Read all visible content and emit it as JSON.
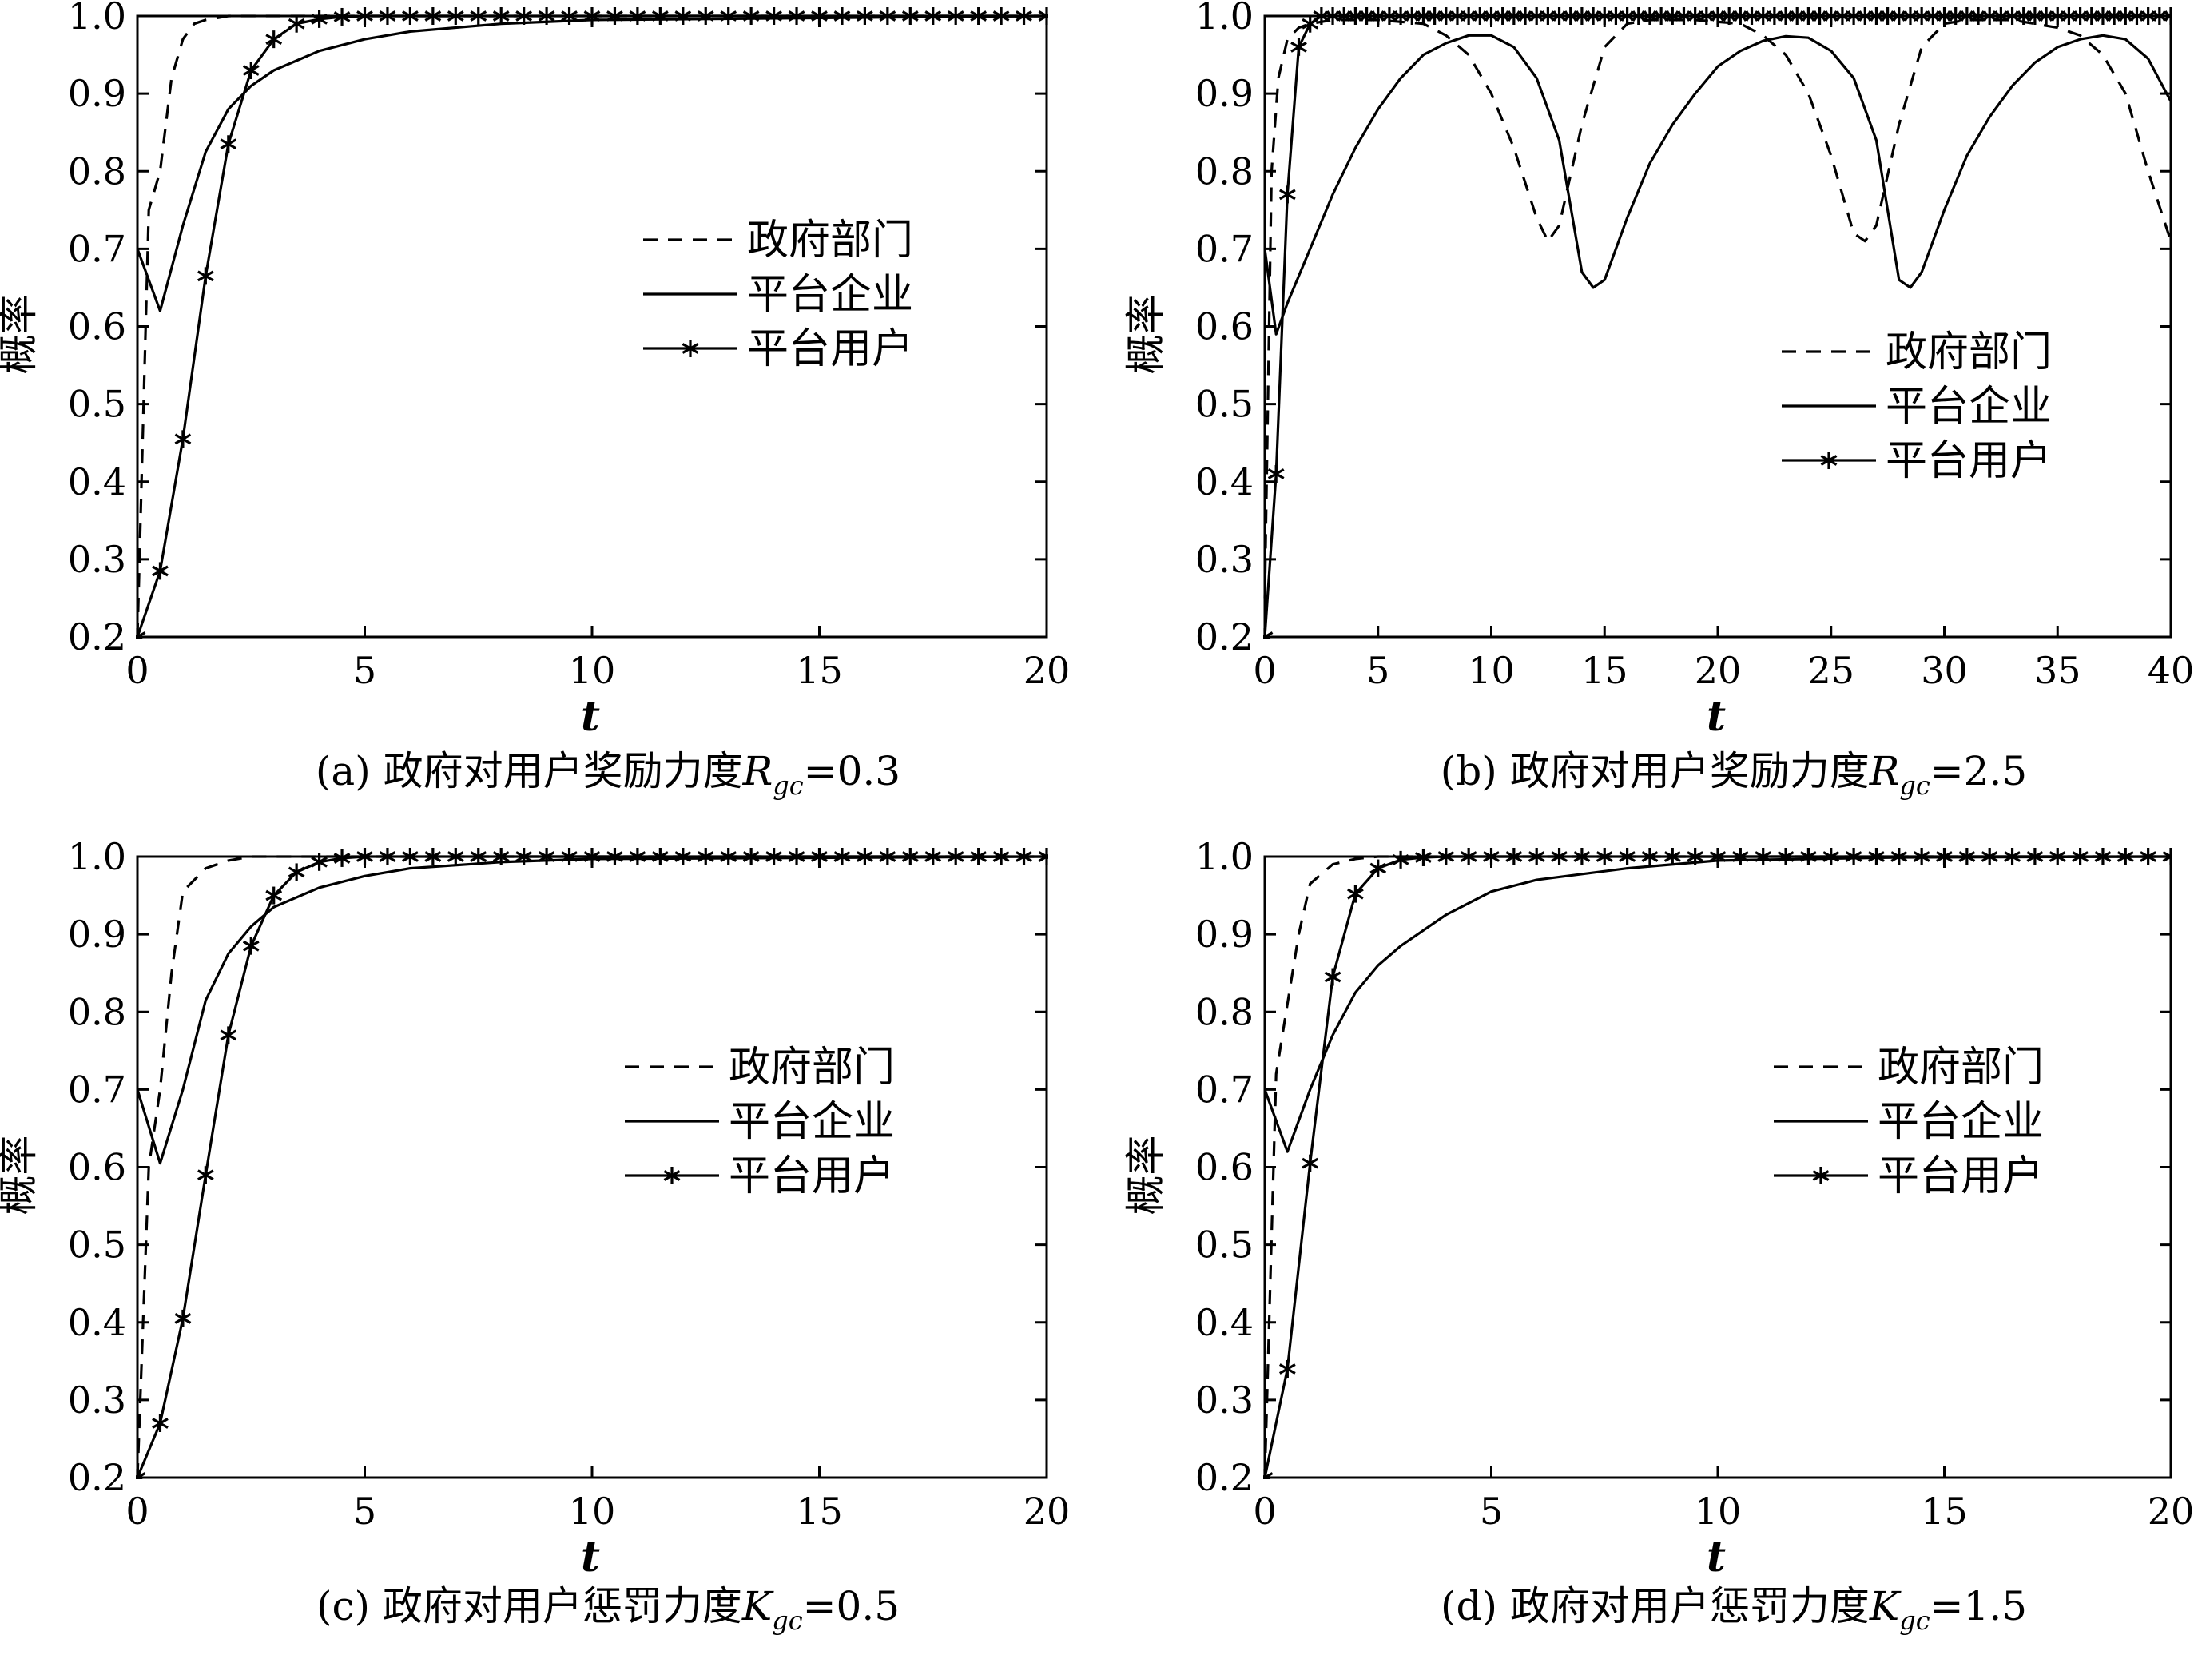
{
  "chart_data": [
    {
      "type": "line",
      "caption": {
        "prefix": "(a) 政府对用户奖励力度",
        "var": "R",
        "sub": "gc",
        "value": "=0.3"
      },
      "xlabel": "t",
      "ylabel": "概率",
      "xlim": [
        0,
        20
      ],
      "ylim": [
        0.2,
        1.0
      ],
      "xticks": [
        "0",
        "5",
        "10",
        "15",
        "20"
      ],
      "yticks": [
        "0.2",
        "0.3",
        "0.4",
        "0.5",
        "0.6",
        "0.7",
        "0.8",
        "0.9",
        "1.0"
      ],
      "legend_position": "center-right",
      "series": [
        {
          "name": "政府部门",
          "style": "dashed",
          "x": [
            0,
            0.25,
            0.5,
            0.75,
            1,
            1.25,
            1.5,
            2,
            3,
            5,
            20
          ],
          "y": [
            0.2,
            0.75,
            0.8,
            0.92,
            0.97,
            0.99,
            0.995,
            1.0,
            1.0,
            1.0,
            1.0
          ]
        },
        {
          "name": "平台企业",
          "style": "solid",
          "x": [
            0,
            0.5,
            1,
            1.5,
            2,
            2.5,
            3,
            4,
            5,
            6,
            8,
            10,
            20
          ],
          "y": [
            0.7,
            0.62,
            0.73,
            0.825,
            0.88,
            0.91,
            0.93,
            0.955,
            0.97,
            0.98,
            0.99,
            0.995,
            1.0
          ]
        },
        {
          "name": "平台用户",
          "style": "asterisk",
          "x": [
            0,
            0.5,
            1,
            1.5,
            2,
            2.5,
            3,
            3.5,
            4,
            4.5,
            5,
            5.5,
            6,
            6.5,
            7,
            7.5,
            8,
            8.5,
            9,
            9.5,
            10,
            10.5,
            11,
            11.5,
            12,
            12.5,
            13,
            13.5,
            14,
            14.5,
            15,
            15.5,
            16,
            16.5,
            17,
            17.5,
            18,
            18.5,
            19,
            19.5,
            20
          ],
          "y": [
            0.2,
            0.285,
            0.455,
            0.665,
            0.835,
            0.93,
            0.97,
            0.99,
            0.996,
            0.999,
            1.0,
            1.0,
            1.0,
            1.0,
            1.0,
            1.0,
            1.0,
            1.0,
            1.0,
            1.0,
            1.0,
            1.0,
            1.0,
            1.0,
            1.0,
            1.0,
            1.0,
            1.0,
            1.0,
            1.0,
            1.0,
            1.0,
            1.0,
            1.0,
            1.0,
            1.0,
            1.0,
            1.0,
            1.0,
            1.0,
            1.0
          ]
        }
      ]
    },
    {
      "type": "line",
      "caption": {
        "prefix": "(b) 政府对用户奖励力度",
        "var": "R",
        "sub": "gc",
        "value": "=2.5"
      },
      "xlabel": "t",
      "ylabel": "概率",
      "xlim": [
        0,
        40
      ],
      "ylim": [
        0.2,
        1.0
      ],
      "xticks": [
        "0",
        "5",
        "10",
        "15",
        "20",
        "25",
        "30",
        "35",
        "40"
      ],
      "yticks": [
        "0.2",
        "0.3",
        "0.4",
        "0.5",
        "0.6",
        "0.7",
        "0.8",
        "0.9",
        "1.0"
      ],
      "legend_position": "center-right",
      "series": [
        {
          "name": "政府部门",
          "style": "dashed",
          "x": [
            0,
            0.3,
            0.6,
            1,
            1.5,
            2,
            3,
            5,
            7,
            8,
            9,
            10,
            11,
            12,
            12.5,
            13,
            14,
            15,
            16,
            17,
            19,
            21,
            22,
            23,
            24,
            25,
            26,
            26.5,
            27,
            28,
            29,
            30,
            31,
            33,
            35,
            36,
            37,
            38,
            39,
            40
          ],
          "y": [
            0.25,
            0.8,
            0.92,
            0.97,
            0.985,
            0.99,
            0.995,
            0.995,
            0.99,
            0.975,
            0.95,
            0.9,
            0.83,
            0.74,
            0.71,
            0.73,
            0.86,
            0.96,
            0.99,
            0.995,
            0.995,
            0.99,
            0.975,
            0.95,
            0.9,
            0.82,
            0.72,
            0.71,
            0.73,
            0.86,
            0.96,
            0.99,
            0.995,
            0.995,
            0.985,
            0.975,
            0.95,
            0.9,
            0.8,
            0.71
          ]
        },
        {
          "name": "平台企业",
          "style": "solid",
          "x": [
            0,
            0.5,
            1,
            2,
            3,
            4,
            5,
            6,
            7,
            8,
            9,
            10,
            11,
            12,
            13,
            14,
            14.5,
            15,
            16,
            17,
            18,
            19,
            20,
            21,
            22,
            23,
            24,
            25,
            26,
            27,
            28,
            28.5,
            29,
            30,
            31,
            32,
            33,
            34,
            35,
            36,
            37,
            38,
            39,
            40
          ],
          "y": [
            0.7,
            0.59,
            0.63,
            0.7,
            0.77,
            0.83,
            0.88,
            0.92,
            0.95,
            0.965,
            0.975,
            0.975,
            0.96,
            0.92,
            0.84,
            0.67,
            0.65,
            0.66,
            0.74,
            0.81,
            0.86,
            0.9,
            0.935,
            0.955,
            0.968,
            0.974,
            0.972,
            0.955,
            0.92,
            0.84,
            0.66,
            0.65,
            0.67,
            0.75,
            0.82,
            0.87,
            0.91,
            0.94,
            0.96,
            0.97,
            0.975,
            0.97,
            0.945,
            0.89
          ]
        },
        {
          "name": "平台用户",
          "style": "asterisk",
          "x": [
            0,
            0.5,
            1,
            1.5,
            2,
            2.5,
            3,
            3.5,
            4,
            4.5,
            5,
            5.5,
            6,
            6.5,
            7,
            7.5,
            8,
            8.5,
            9,
            9.5,
            10,
            10.5,
            11,
            11.5,
            12,
            12.5,
            13,
            13.5,
            14,
            14.5,
            15,
            15.5,
            16,
            16.5,
            17,
            17.5,
            18,
            18.5,
            19,
            19.5,
            20,
            20.5,
            21,
            21.5,
            22,
            22.5,
            23,
            23.5,
            24,
            24.5,
            25,
            25.5,
            26,
            26.5,
            27,
            27.5,
            28,
            28.5,
            29,
            29.5,
            30,
            30.5,
            31,
            31.5,
            32,
            32.5,
            33,
            33.5,
            34,
            34.5,
            35,
            35.5,
            36,
            36.5,
            37,
            37.5,
            38,
            38.5,
            39,
            39.5,
            40
          ],
          "y": [
            0.2,
            0.41,
            0.77,
            0.96,
            0.99,
            1.0,
            1.0,
            1.0,
            1.0,
            1.0,
            1.0,
            1.0,
            1.0,
            1.0,
            1.0,
            1.0,
            1.0,
            1.0,
            1.0,
            1.0,
            1.0,
            1.0,
            1.0,
            1.0,
            1.0,
            1.0,
            1.0,
            1.0,
            1.0,
            1.0,
            1.0,
            1.0,
            1.0,
            1.0,
            1.0,
            1.0,
            1.0,
            1.0,
            1.0,
            1.0,
            1.0,
            1.0,
            1.0,
            1.0,
            1.0,
            1.0,
            1.0,
            1.0,
            1.0,
            1.0,
            1.0,
            1.0,
            1.0,
            1.0,
            1.0,
            1.0,
            1.0,
            1.0,
            1.0,
            1.0,
            1.0,
            1.0,
            1.0,
            1.0,
            1.0,
            1.0,
            1.0,
            1.0,
            1.0,
            1.0,
            1.0,
            1.0,
            1.0,
            1.0,
            1.0,
            1.0,
            1.0,
            1.0,
            1.0,
            1.0,
            1.0
          ]
        }
      ]
    },
    {
      "type": "line",
      "caption": {
        "prefix": "(c) 政府对用户惩罚力度",
        "var": "K",
        "sub": "gc",
        "value": "=0.5"
      },
      "xlabel": "t",
      "ylabel": "概率",
      "xlim": [
        0,
        20
      ],
      "ylim": [
        0.2,
        1.0
      ],
      "xticks": [
        "0",
        "5",
        "10",
        "15",
        "20"
      ],
      "yticks": [
        "0.2",
        "0.3",
        "0.4",
        "0.5",
        "0.6",
        "0.7",
        "0.8",
        "0.9",
        "1.0"
      ],
      "legend_position": "center-right",
      "series": [
        {
          "name": "政府部门",
          "style": "dashed",
          "x": [
            0,
            0.25,
            0.5,
            0.75,
            1,
            1.5,
            2,
            2.5,
            3,
            5,
            20
          ],
          "y": [
            0.2,
            0.6,
            0.7,
            0.85,
            0.955,
            0.985,
            0.995,
            1.0,
            1.0,
            1.0,
            1.0
          ]
        },
        {
          "name": "平台企业",
          "style": "solid",
          "x": [
            0,
            0.5,
            1,
            1.5,
            2,
            2.5,
            3,
            4,
            5,
            6,
            8,
            10,
            20
          ],
          "y": [
            0.7,
            0.605,
            0.7,
            0.815,
            0.875,
            0.91,
            0.935,
            0.96,
            0.975,
            0.985,
            0.993,
            0.997,
            1.0
          ]
        },
        {
          "name": "平台用户",
          "style": "asterisk",
          "x": [
            0,
            0.5,
            1,
            1.5,
            2,
            2.5,
            3,
            3.5,
            4,
            4.5,
            5,
            5.5,
            6,
            6.5,
            7,
            7.5,
            8,
            8.5,
            9,
            9.5,
            10,
            10.5,
            11,
            11.5,
            12,
            12.5,
            13,
            13.5,
            14,
            14.5,
            15,
            15.5,
            16,
            16.5,
            17,
            17.5,
            18,
            18.5,
            19,
            19.5,
            20
          ],
          "y": [
            0.2,
            0.27,
            0.405,
            0.59,
            0.77,
            0.885,
            0.95,
            0.98,
            0.993,
            0.998,
            1.0,
            1.0,
            1.0,
            1.0,
            1.0,
            1.0,
            1.0,
            1.0,
            1.0,
            1.0,
            1.0,
            1.0,
            1.0,
            1.0,
            1.0,
            1.0,
            1.0,
            1.0,
            1.0,
            1.0,
            1.0,
            1.0,
            1.0,
            1.0,
            1.0,
            1.0,
            1.0,
            1.0,
            1.0,
            1.0,
            1.0
          ]
        }
      ]
    },
    {
      "type": "line",
      "caption": {
        "prefix": "(d) 政府对用户惩罚力度",
        "var": "K",
        "sub": "gc",
        "value": "=1.5"
      },
      "xlabel": "t",
      "ylabel": "概率",
      "xlim": [
        0,
        20
      ],
      "ylim": [
        0.2,
        1.0
      ],
      "xticks": [
        "0",
        "5",
        "10",
        "15",
        "20"
      ],
      "yticks": [
        "0.2",
        "0.3",
        "0.4",
        "0.5",
        "0.6",
        "0.7",
        "0.8",
        "0.9",
        "1.0"
      ],
      "legend_position": "center-right",
      "series": [
        {
          "name": "政府部门",
          "style": "dashed",
          "x": [
            0,
            0.25,
            0.5,
            0.75,
            1,
            1.5,
            2,
            2.5,
            3,
            5,
            20
          ],
          "y": [
            0.2,
            0.72,
            0.81,
            0.9,
            0.965,
            0.99,
            0.997,
            1.0,
            1.0,
            1.0,
            1.0
          ]
        },
        {
          "name": "平台企业",
          "style": "solid",
          "x": [
            0,
            0.5,
            1,
            1.5,
            2,
            2.5,
            3,
            4,
            5,
            6,
            8,
            10,
            14,
            20
          ],
          "y": [
            0.7,
            0.62,
            0.7,
            0.77,
            0.825,
            0.86,
            0.885,
            0.925,
            0.955,
            0.97,
            0.985,
            0.995,
            0.999,
            1.0
          ]
        },
        {
          "name": "平台用户",
          "style": "asterisk",
          "x": [
            0,
            0.5,
            1,
            1.5,
            2,
            2.5,
            3,
            3.5,
            4,
            4.5,
            5,
            5.5,
            6,
            6.5,
            7,
            7.5,
            8,
            8.5,
            9,
            9.5,
            10,
            10.5,
            11,
            11.5,
            12,
            12.5,
            13,
            13.5,
            14,
            14.5,
            15,
            15.5,
            16,
            16.5,
            17,
            17.5,
            18,
            18.5,
            19,
            19.5,
            20
          ],
          "y": [
            0.2,
            0.34,
            0.605,
            0.845,
            0.952,
            0.985,
            0.996,
            0.999,
            1.0,
            1.0,
            1.0,
            1.0,
            1.0,
            1.0,
            1.0,
            1.0,
            1.0,
            1.0,
            1.0,
            1.0,
            1.0,
            1.0,
            1.0,
            1.0,
            1.0,
            1.0,
            1.0,
            1.0,
            1.0,
            1.0,
            1.0,
            1.0,
            1.0,
            1.0,
            1.0,
            1.0,
            1.0,
            1.0,
            1.0,
            1.0,
            1.0
          ]
        }
      ]
    }
  ]
}
